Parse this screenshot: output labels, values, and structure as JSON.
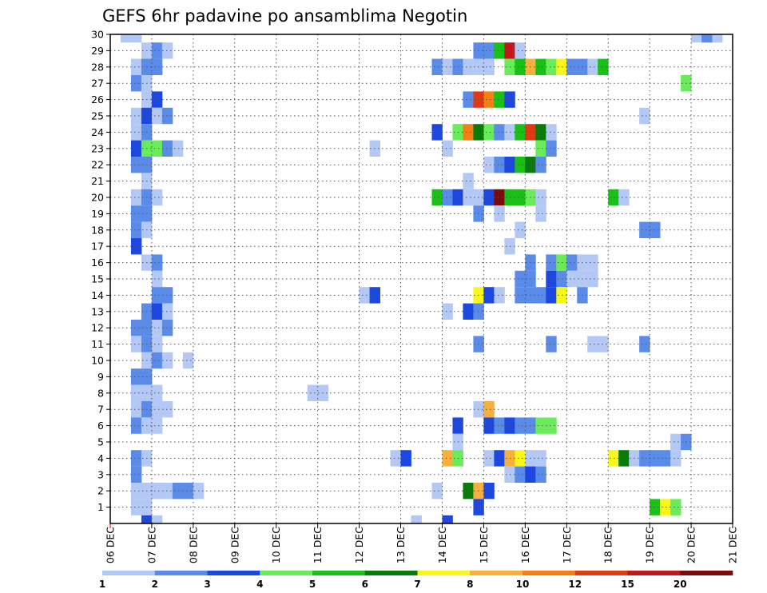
{
  "chart_data": {
    "type": "heatmap",
    "title": "GEFS 6hr padavine po ansamblima Negotin",
    "x_tick_labels": [
      "06 DEC",
      "07 DEC",
      "08 DEC",
      "09 DEC",
      "10 DEC",
      "11 DEC",
      "12 DEC",
      "13 DEC",
      "14 DEC",
      "15 DEC",
      "16 DEC",
      "17 DEC",
      "18 DEC",
      "19 DEC",
      "20 DEC",
      "21 DEC"
    ],
    "y_tick_labels": [
      "1",
      "2",
      "3",
      "4",
      "5",
      "6",
      "7",
      "8",
      "9",
      "10",
      "11",
      "12",
      "13",
      "14",
      "15",
      "16",
      "17",
      "18",
      "19",
      "20",
      "21",
      "22",
      "23",
      "24",
      "25",
      "26",
      "27",
      "28",
      "29",
      "30"
    ],
    "y_range": [
      0,
      30
    ],
    "x_range_days": [
      0,
      15
    ],
    "grid": "dotted",
    "colorbar": {
      "labels": [
        "1",
        "2",
        "3",
        "4",
        "5",
        "6",
        "7",
        "8",
        "10",
        "12",
        "15",
        "20"
      ],
      "colors": [
        "#b3c8f5",
        "#5b8be8",
        "#1c48e0",
        "#6aec5a",
        "#18c018",
        "#0a7a0a",
        "#f7f71c",
        "#f7b040",
        "#f57f14",
        "#e03a14",
        "#c01818",
        "#7c0a0a"
      ]
    },
    "cells": [
      {
        "d": 0.25,
        "r": 30,
        "c": 1
      },
      {
        "d": 0.5,
        "r": 30,
        "c": 1
      },
      {
        "d": 14.0,
        "r": 30,
        "c": 1
      },
      {
        "d": 14.5,
        "r": 30,
        "c": 1
      },
      {
        "d": 14.25,
        "r": 30,
        "c": 2
      },
      {
        "d": 0.75,
        "r": 29,
        "c": 1
      },
      {
        "d": 1.0,
        "r": 29,
        "c": 2
      },
      {
        "d": 1.25,
        "r": 29,
        "c": 1
      },
      {
        "d": 8.75,
        "r": 29,
        "c": 2
      },
      {
        "d": 9.0,
        "r": 29,
        "c": 2
      },
      {
        "d": 9.25,
        "r": 29,
        "c": 5
      },
      {
        "d": 9.5,
        "r": 29,
        "c": 11
      },
      {
        "d": 9.75,
        "r": 29,
        "c": 1
      },
      {
        "d": 0.5,
        "r": 28,
        "c": 1
      },
      {
        "d": 0.75,
        "r": 28,
        "c": 2
      },
      {
        "d": 1.0,
        "r": 28,
        "c": 2
      },
      {
        "d": 7.75,
        "r": 28,
        "c": 2
      },
      {
        "d": 8.0,
        "r": 28,
        "c": 1
      },
      {
        "d": 8.25,
        "r": 28,
        "c": 2
      },
      {
        "d": 8.5,
        "r": 28,
        "c": 1
      },
      {
        "d": 8.75,
        "r": 28,
        "c": 1
      },
      {
        "d": 9.0,
        "r": 28,
        "c": 1
      },
      {
        "d": 9.5,
        "r": 28,
        "c": 4
      },
      {
        "d": 9.75,
        "r": 28,
        "c": 5
      },
      {
        "d": 10.0,
        "r": 28,
        "c": 8
      },
      {
        "d": 10.25,
        "r": 28,
        "c": 5
      },
      {
        "d": 10.5,
        "r": 28,
        "c": 4
      },
      {
        "d": 10.75,
        "r": 28,
        "c": 7
      },
      {
        "d": 11.0,
        "r": 28,
        "c": 2
      },
      {
        "d": 11.25,
        "r": 28,
        "c": 2
      },
      {
        "d": 11.5,
        "r": 28,
        "c": 1
      },
      {
        "d": 11.75,
        "r": 28,
        "c": 5
      },
      {
        "d": 0.5,
        "r": 27,
        "c": 2
      },
      {
        "d": 0.75,
        "r": 27,
        "c": 1
      },
      {
        "d": 13.75,
        "r": 27,
        "c": 4
      },
      {
        "d": 0.75,
        "r": 26,
        "c": 1
      },
      {
        "d": 1.0,
        "r": 26,
        "c": 3
      },
      {
        "d": 8.5,
        "r": 26,
        "c": 2
      },
      {
        "d": 8.75,
        "r": 26,
        "c": 10
      },
      {
        "d": 9.0,
        "r": 26,
        "c": 9
      },
      {
        "d": 9.25,
        "r": 26,
        "c": 5
      },
      {
        "d": 9.5,
        "r": 26,
        "c": 3
      },
      {
        "d": 0.5,
        "r": 25,
        "c": 1
      },
      {
        "d": 0.75,
        "r": 25,
        "c": 3
      },
      {
        "d": 1.0,
        "r": 25,
        "c": 1
      },
      {
        "d": 1.25,
        "r": 25,
        "c": 2
      },
      {
        "d": 12.75,
        "r": 25,
        "c": 1
      },
      {
        "d": 0.5,
        "r": 24,
        "c": 1
      },
      {
        "d": 0.75,
        "r": 24,
        "c": 2
      },
      {
        "d": 7.75,
        "r": 24,
        "c": 3
      },
      {
        "d": 8.25,
        "r": 24,
        "c": 4
      },
      {
        "d": 8.5,
        "r": 24,
        "c": 9
      },
      {
        "d": 8.75,
        "r": 24,
        "c": 6
      },
      {
        "d": 9.0,
        "r": 24,
        "c": 4
      },
      {
        "d": 9.25,
        "r": 24,
        "c": 2
      },
      {
        "d": 9.5,
        "r": 24,
        "c": 1
      },
      {
        "d": 9.75,
        "r": 24,
        "c": 5
      },
      {
        "d": 10.0,
        "r": 24,
        "c": 10
      },
      {
        "d": 10.25,
        "r": 24,
        "c": 6
      },
      {
        "d": 10.5,
        "r": 24,
        "c": 1
      },
      {
        "d": 0.5,
        "r": 23,
        "c": 3
      },
      {
        "d": 0.75,
        "r": 23,
        "c": 4
      },
      {
        "d": 1.0,
        "r": 23,
        "c": 4
      },
      {
        "d": 1.25,
        "r": 23,
        "c": 2
      },
      {
        "d": 1.5,
        "r": 23,
        "c": 1
      },
      {
        "d": 6.25,
        "r": 23,
        "c": 1
      },
      {
        "d": 8.0,
        "r": 23,
        "c": 1
      },
      {
        "d": 10.25,
        "r": 23,
        "c": 4
      },
      {
        "d": 10.5,
        "r": 23,
        "c": 2
      },
      {
        "d": 0.5,
        "r": 22,
        "c": 2
      },
      {
        "d": 0.75,
        "r": 22,
        "c": 2
      },
      {
        "d": 9.0,
        "r": 22,
        "c": 1
      },
      {
        "d": 9.25,
        "r": 22,
        "c": 2
      },
      {
        "d": 9.5,
        "r": 22,
        "c": 3
      },
      {
        "d": 9.75,
        "r": 22,
        "c": 5
      },
      {
        "d": 10.0,
        "r": 22,
        "c": 6
      },
      {
        "d": 10.25,
        "r": 22,
        "c": 2
      },
      {
        "d": 0.75,
        "r": 21,
        "c": 1
      },
      {
        "d": 8.5,
        "r": 21,
        "c": 1
      },
      {
        "d": 0.5,
        "r": 20,
        "c": 1
      },
      {
        "d": 0.75,
        "r": 20,
        "c": 2
      },
      {
        "d": 1.0,
        "r": 20,
        "c": 1
      },
      {
        "d": 7.75,
        "r": 20,
        "c": 5
      },
      {
        "d": 8.0,
        "r": 20,
        "c": 2
      },
      {
        "d": 8.25,
        "r": 20,
        "c": 3
      },
      {
        "d": 8.5,
        "r": 20,
        "c": 1
      },
      {
        "d": 8.75,
        "r": 20,
        "c": 1
      },
      {
        "d": 9.0,
        "r": 20,
        "c": 3
      },
      {
        "d": 9.25,
        "r": 20,
        "c": 12
      },
      {
        "d": 9.5,
        "r": 20,
        "c": 5
      },
      {
        "d": 9.75,
        "r": 20,
        "c": 5
      },
      {
        "d": 10.0,
        "r": 20,
        "c": 4
      },
      {
        "d": 10.25,
        "r": 20,
        "c": 1
      },
      {
        "d": 12.0,
        "r": 20,
        "c": 5
      },
      {
        "d": 12.25,
        "r": 20,
        "c": 1
      },
      {
        "d": 0.5,
        "r": 19,
        "c": 2
      },
      {
        "d": 0.75,
        "r": 19,
        "c": 2
      },
      {
        "d": 8.75,
        "r": 19,
        "c": 2
      },
      {
        "d": 9.25,
        "r": 19,
        "c": 1
      },
      {
        "d": 10.25,
        "r": 19,
        "c": 1
      },
      {
        "d": 0.5,
        "r": 18,
        "c": 2
      },
      {
        "d": 0.75,
        "r": 18,
        "c": 1
      },
      {
        "d": 9.75,
        "r": 18,
        "c": 1
      },
      {
        "d": 12.75,
        "r": 18,
        "c": 2
      },
      {
        "d": 13.0,
        "r": 18,
        "c": 2
      },
      {
        "d": 0.5,
        "r": 17,
        "c": 3
      },
      {
        "d": 9.5,
        "r": 17,
        "c": 1
      },
      {
        "d": 0.75,
        "r": 16,
        "c": 1
      },
      {
        "d": 1.0,
        "r": 16,
        "c": 2
      },
      {
        "d": 10.0,
        "r": 16,
        "c": 2
      },
      {
        "d": 10.5,
        "r": 16,
        "c": 2
      },
      {
        "d": 10.75,
        "r": 16,
        "c": 4
      },
      {
        "d": 11.0,
        "r": 16,
        "c": 2
      },
      {
        "d": 11.25,
        "r": 16,
        "c": 1
      },
      {
        "d": 11.5,
        "r": 16,
        "c": 1
      },
      {
        "d": 1.0,
        "r": 15,
        "c": 1
      },
      {
        "d": 9.75,
        "r": 15,
        "c": 2
      },
      {
        "d": 10.0,
        "r": 15,
        "c": 2
      },
      {
        "d": 10.5,
        "r": 15,
        "c": 3
      },
      {
        "d": 10.75,
        "r": 15,
        "c": 2
      },
      {
        "d": 11.0,
        "r": 15,
        "c": 1
      },
      {
        "d": 11.25,
        "r": 15,
        "c": 1
      },
      {
        "d": 11.5,
        "r": 15,
        "c": 1
      },
      {
        "d": 1.0,
        "r": 14,
        "c": 2
      },
      {
        "d": 1.25,
        "r": 14,
        "c": 2
      },
      {
        "d": 6.0,
        "r": 14,
        "c": 1
      },
      {
        "d": 6.25,
        "r": 14,
        "c": 3
      },
      {
        "d": 8.75,
        "r": 14,
        "c": 7
      },
      {
        "d": 9.0,
        "r": 14,
        "c": 3
      },
      {
        "d": 9.25,
        "r": 14,
        "c": 1
      },
      {
        "d": 9.75,
        "r": 14,
        "c": 2
      },
      {
        "d": 10.0,
        "r": 14,
        "c": 2
      },
      {
        "d": 10.25,
        "r": 14,
        "c": 2
      },
      {
        "d": 10.5,
        "r": 14,
        "c": 3
      },
      {
        "d": 10.75,
        "r": 14,
        "c": 7
      },
      {
        "d": 11.25,
        "r": 14,
        "c": 2
      },
      {
        "d": 0.75,
        "r": 13,
        "c": 2
      },
      {
        "d": 1.0,
        "r": 13,
        "c": 3
      },
      {
        "d": 1.25,
        "r": 13,
        "c": 1
      },
      {
        "d": 8.0,
        "r": 13,
        "c": 1
      },
      {
        "d": 8.5,
        "r": 13,
        "c": 3
      },
      {
        "d": 8.75,
        "r": 13,
        "c": 2
      },
      {
        "d": 0.5,
        "r": 12,
        "c": 2
      },
      {
        "d": 0.75,
        "r": 12,
        "c": 2
      },
      {
        "d": 1.0,
        "r": 12,
        "c": 1
      },
      {
        "d": 1.25,
        "r": 12,
        "c": 2
      },
      {
        "d": 0.5,
        "r": 11,
        "c": 1
      },
      {
        "d": 0.75,
        "r": 11,
        "c": 2
      },
      {
        "d": 1.0,
        "r": 11,
        "c": 1
      },
      {
        "d": 8.75,
        "r": 11,
        "c": 2
      },
      {
        "d": 10.5,
        "r": 11,
        "c": 2
      },
      {
        "d": 11.5,
        "r": 11,
        "c": 1
      },
      {
        "d": 11.75,
        "r": 11,
        "c": 1
      },
      {
        "d": 12.75,
        "r": 11,
        "c": 2
      },
      {
        "d": 0.75,
        "r": 10,
        "c": 1
      },
      {
        "d": 1.0,
        "r": 10,
        "c": 2
      },
      {
        "d": 1.25,
        "r": 10,
        "c": 1
      },
      {
        "d": 1.75,
        "r": 10,
        "c": 1
      },
      {
        "d": 0.5,
        "r": 9,
        "c": 2
      },
      {
        "d": 0.75,
        "r": 9,
        "c": 2
      },
      {
        "d": 0.5,
        "r": 8,
        "c": 1
      },
      {
        "d": 0.75,
        "r": 8,
        "c": 1
      },
      {
        "d": 1.0,
        "r": 8,
        "c": 1
      },
      {
        "d": 4.75,
        "r": 8,
        "c": 1
      },
      {
        "d": 5.0,
        "r": 8,
        "c": 1
      },
      {
        "d": 0.5,
        "r": 7,
        "c": 1
      },
      {
        "d": 0.75,
        "r": 7,
        "c": 2
      },
      {
        "d": 1.0,
        "r": 7,
        "c": 1
      },
      {
        "d": 1.25,
        "r": 7,
        "c": 1
      },
      {
        "d": 8.75,
        "r": 7,
        "c": 1
      },
      {
        "d": 9.0,
        "r": 7,
        "c": 8
      },
      {
        "d": 0.5,
        "r": 6,
        "c": 2
      },
      {
        "d": 0.75,
        "r": 6,
        "c": 1
      },
      {
        "d": 1.0,
        "r": 6,
        "c": 1
      },
      {
        "d": 8.25,
        "r": 6,
        "c": 3
      },
      {
        "d": 9.0,
        "r": 6,
        "c": 3
      },
      {
        "d": 9.25,
        "r": 6,
        "c": 2
      },
      {
        "d": 9.5,
        "r": 6,
        "c": 3
      },
      {
        "d": 9.75,
        "r": 6,
        "c": 2
      },
      {
        "d": 10.0,
        "r": 6,
        "c": 2
      },
      {
        "d": 10.25,
        "r": 6,
        "c": 4
      },
      {
        "d": 10.5,
        "r": 6,
        "c": 4
      },
      {
        "d": 8.25,
        "r": 5,
        "c": 1
      },
      {
        "d": 13.5,
        "r": 5,
        "c": 1
      },
      {
        "d": 13.75,
        "r": 5,
        "c": 2
      },
      {
        "d": 0.5,
        "r": 4,
        "c": 2
      },
      {
        "d": 0.75,
        "r": 4,
        "c": 1
      },
      {
        "d": 6.75,
        "r": 4,
        "c": 1
      },
      {
        "d": 7.0,
        "r": 4,
        "c": 3
      },
      {
        "d": 8.0,
        "r": 4,
        "c": 8
      },
      {
        "d": 8.25,
        "r": 4,
        "c": 4
      },
      {
        "d": 9.0,
        "r": 4,
        "c": 1
      },
      {
        "d": 9.25,
        "r": 4,
        "c": 3
      },
      {
        "d": 9.5,
        "r": 4,
        "c": 8
      },
      {
        "d": 9.75,
        "r": 4,
        "c": 7
      },
      {
        "d": 10.0,
        "r": 4,
        "c": 1
      },
      {
        "d": 10.25,
        "r": 4,
        "c": 1
      },
      {
        "d": 12.0,
        "r": 4,
        "c": 7
      },
      {
        "d": 12.25,
        "r": 4,
        "c": 6
      },
      {
        "d": 12.5,
        "r": 4,
        "c": 1
      },
      {
        "d": 12.75,
        "r": 4,
        "c": 2
      },
      {
        "d": 13.0,
        "r": 4,
        "c": 2
      },
      {
        "d": 13.25,
        "r": 4,
        "c": 2
      },
      {
        "d": 13.5,
        "r": 4,
        "c": 1
      },
      {
        "d": 0.5,
        "r": 3,
        "c": 2
      },
      {
        "d": 9.5,
        "r": 3,
        "c": 1
      },
      {
        "d": 9.75,
        "r": 3,
        "c": 2
      },
      {
        "d": 10.0,
        "r": 3,
        "c": 3
      },
      {
        "d": 10.25,
        "r": 3,
        "c": 2
      },
      {
        "d": 0.5,
        "r": 2,
        "c": 1
      },
      {
        "d": 0.75,
        "r": 2,
        "c": 1
      },
      {
        "d": 1.0,
        "r": 2,
        "c": 1
      },
      {
        "d": 1.25,
        "r": 2,
        "c": 1
      },
      {
        "d": 1.5,
        "r": 2,
        "c": 2
      },
      {
        "d": 1.75,
        "r": 2,
        "c": 2
      },
      {
        "d": 2.0,
        "r": 2,
        "c": 1
      },
      {
        "d": 7.75,
        "r": 2,
        "c": 1
      },
      {
        "d": 8.5,
        "r": 2,
        "c": 6
      },
      {
        "d": 8.75,
        "r": 2,
        "c": 8
      },
      {
        "d": 9.0,
        "r": 2,
        "c": 3
      },
      {
        "d": 0.5,
        "r": 1,
        "c": 1
      },
      {
        "d": 0.75,
        "r": 1,
        "c": 1
      },
      {
        "d": 8.75,
        "r": 1,
        "c": 3
      },
      {
        "d": 13.0,
        "r": 1,
        "c": 5
      },
      {
        "d": 13.25,
        "r": 1,
        "c": 7
      },
      {
        "d": 13.5,
        "r": 1,
        "c": 4
      },
      {
        "d": 0.75,
        "r": 0,
        "c": 3
      },
      {
        "d": 1.0,
        "r": 0,
        "c": 1
      },
      {
        "d": 7.25,
        "r": 0,
        "c": 1
      },
      {
        "d": 8.0,
        "r": 0,
        "c": 3
      }
    ]
  }
}
